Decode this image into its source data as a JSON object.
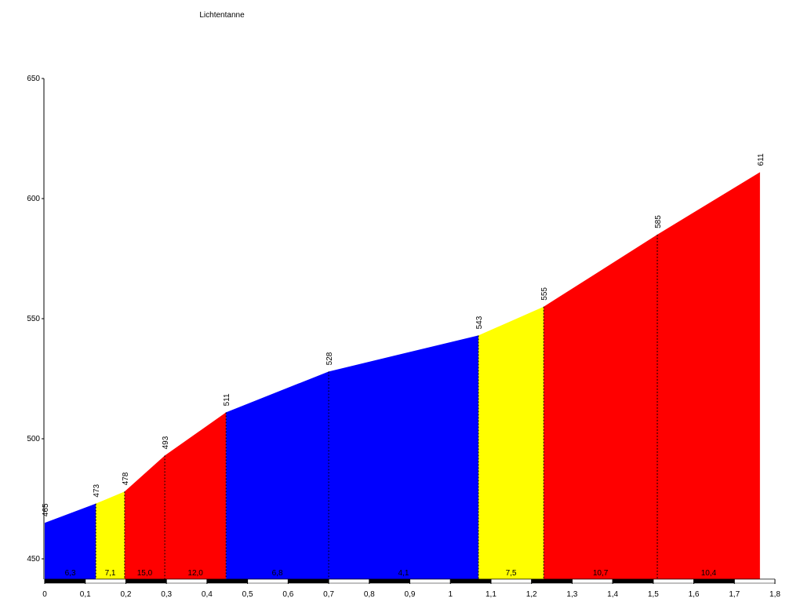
{
  "chart_data": {
    "type": "elevation-profile",
    "title": "Lichtentanne",
    "x": [
      0,
      0.126,
      0.197,
      0.296,
      0.447,
      0.7,
      1.069,
      1.23,
      1.51,
      1.763
    ],
    "series": [
      {
        "values": [
          465,
          473,
          478,
          493,
          511,
          528,
          543,
          555,
          585,
          611
        ]
      }
    ],
    "segments": {
      "values": [
        6.3,
        7.1,
        15.0,
        12.0,
        6.8,
        4.1,
        7.5,
        10.7,
        10.4
      ],
      "value_labels": [
        "6,3",
        "7,1",
        "15,0",
        "12,0",
        "6,8",
        "4,1",
        "7,5",
        "10,7",
        "10,4"
      ],
      "colors": [
        "#0000ff",
        "#ffff00",
        "#ff0000",
        "#ff0000",
        "#0000ff",
        "#0000ff",
        "#ffff00",
        "#ff0000",
        "#ff0000"
      ]
    },
    "xlim": [
      0,
      1.8
    ],
    "xticks": [
      0,
      {
        "value": 0.1,
        "label": "0,1"
      },
      {
        "value": 0.2,
        "label": "0,2"
      },
      {
        "value": 0.3,
        "label": "0,3"
      },
      {
        "value": 0.4,
        "label": "0,4"
      },
      {
        "value": 0.5,
        "label": "0,5"
      },
      {
        "value": 0.6,
        "label": "0,6"
      },
      {
        "value": 0.7,
        "label": "0,7"
      },
      {
        "value": 0.8,
        "label": "0,8"
      },
      {
        "value": 0.9,
        "label": "0,9"
      },
      1,
      {
        "value": 1.1,
        "label": "1,1"
      },
      {
        "value": 1.2,
        "label": "1,2"
      },
      {
        "value": 1.3,
        "label": "1,3"
      },
      {
        "value": 1.4,
        "label": "1,4"
      },
      {
        "value": 1.5,
        "label": "1,5"
      },
      {
        "value": 1.6,
        "label": "1,6"
      },
      {
        "value": 1.7,
        "label": "1,7"
      },
      {
        "value": 1.8,
        "label": "1,8"
      }
    ],
    "ylim": [
      441.5,
      650
    ],
    "yticks": [
      450,
      500,
      550,
      600,
      650
    ]
  }
}
